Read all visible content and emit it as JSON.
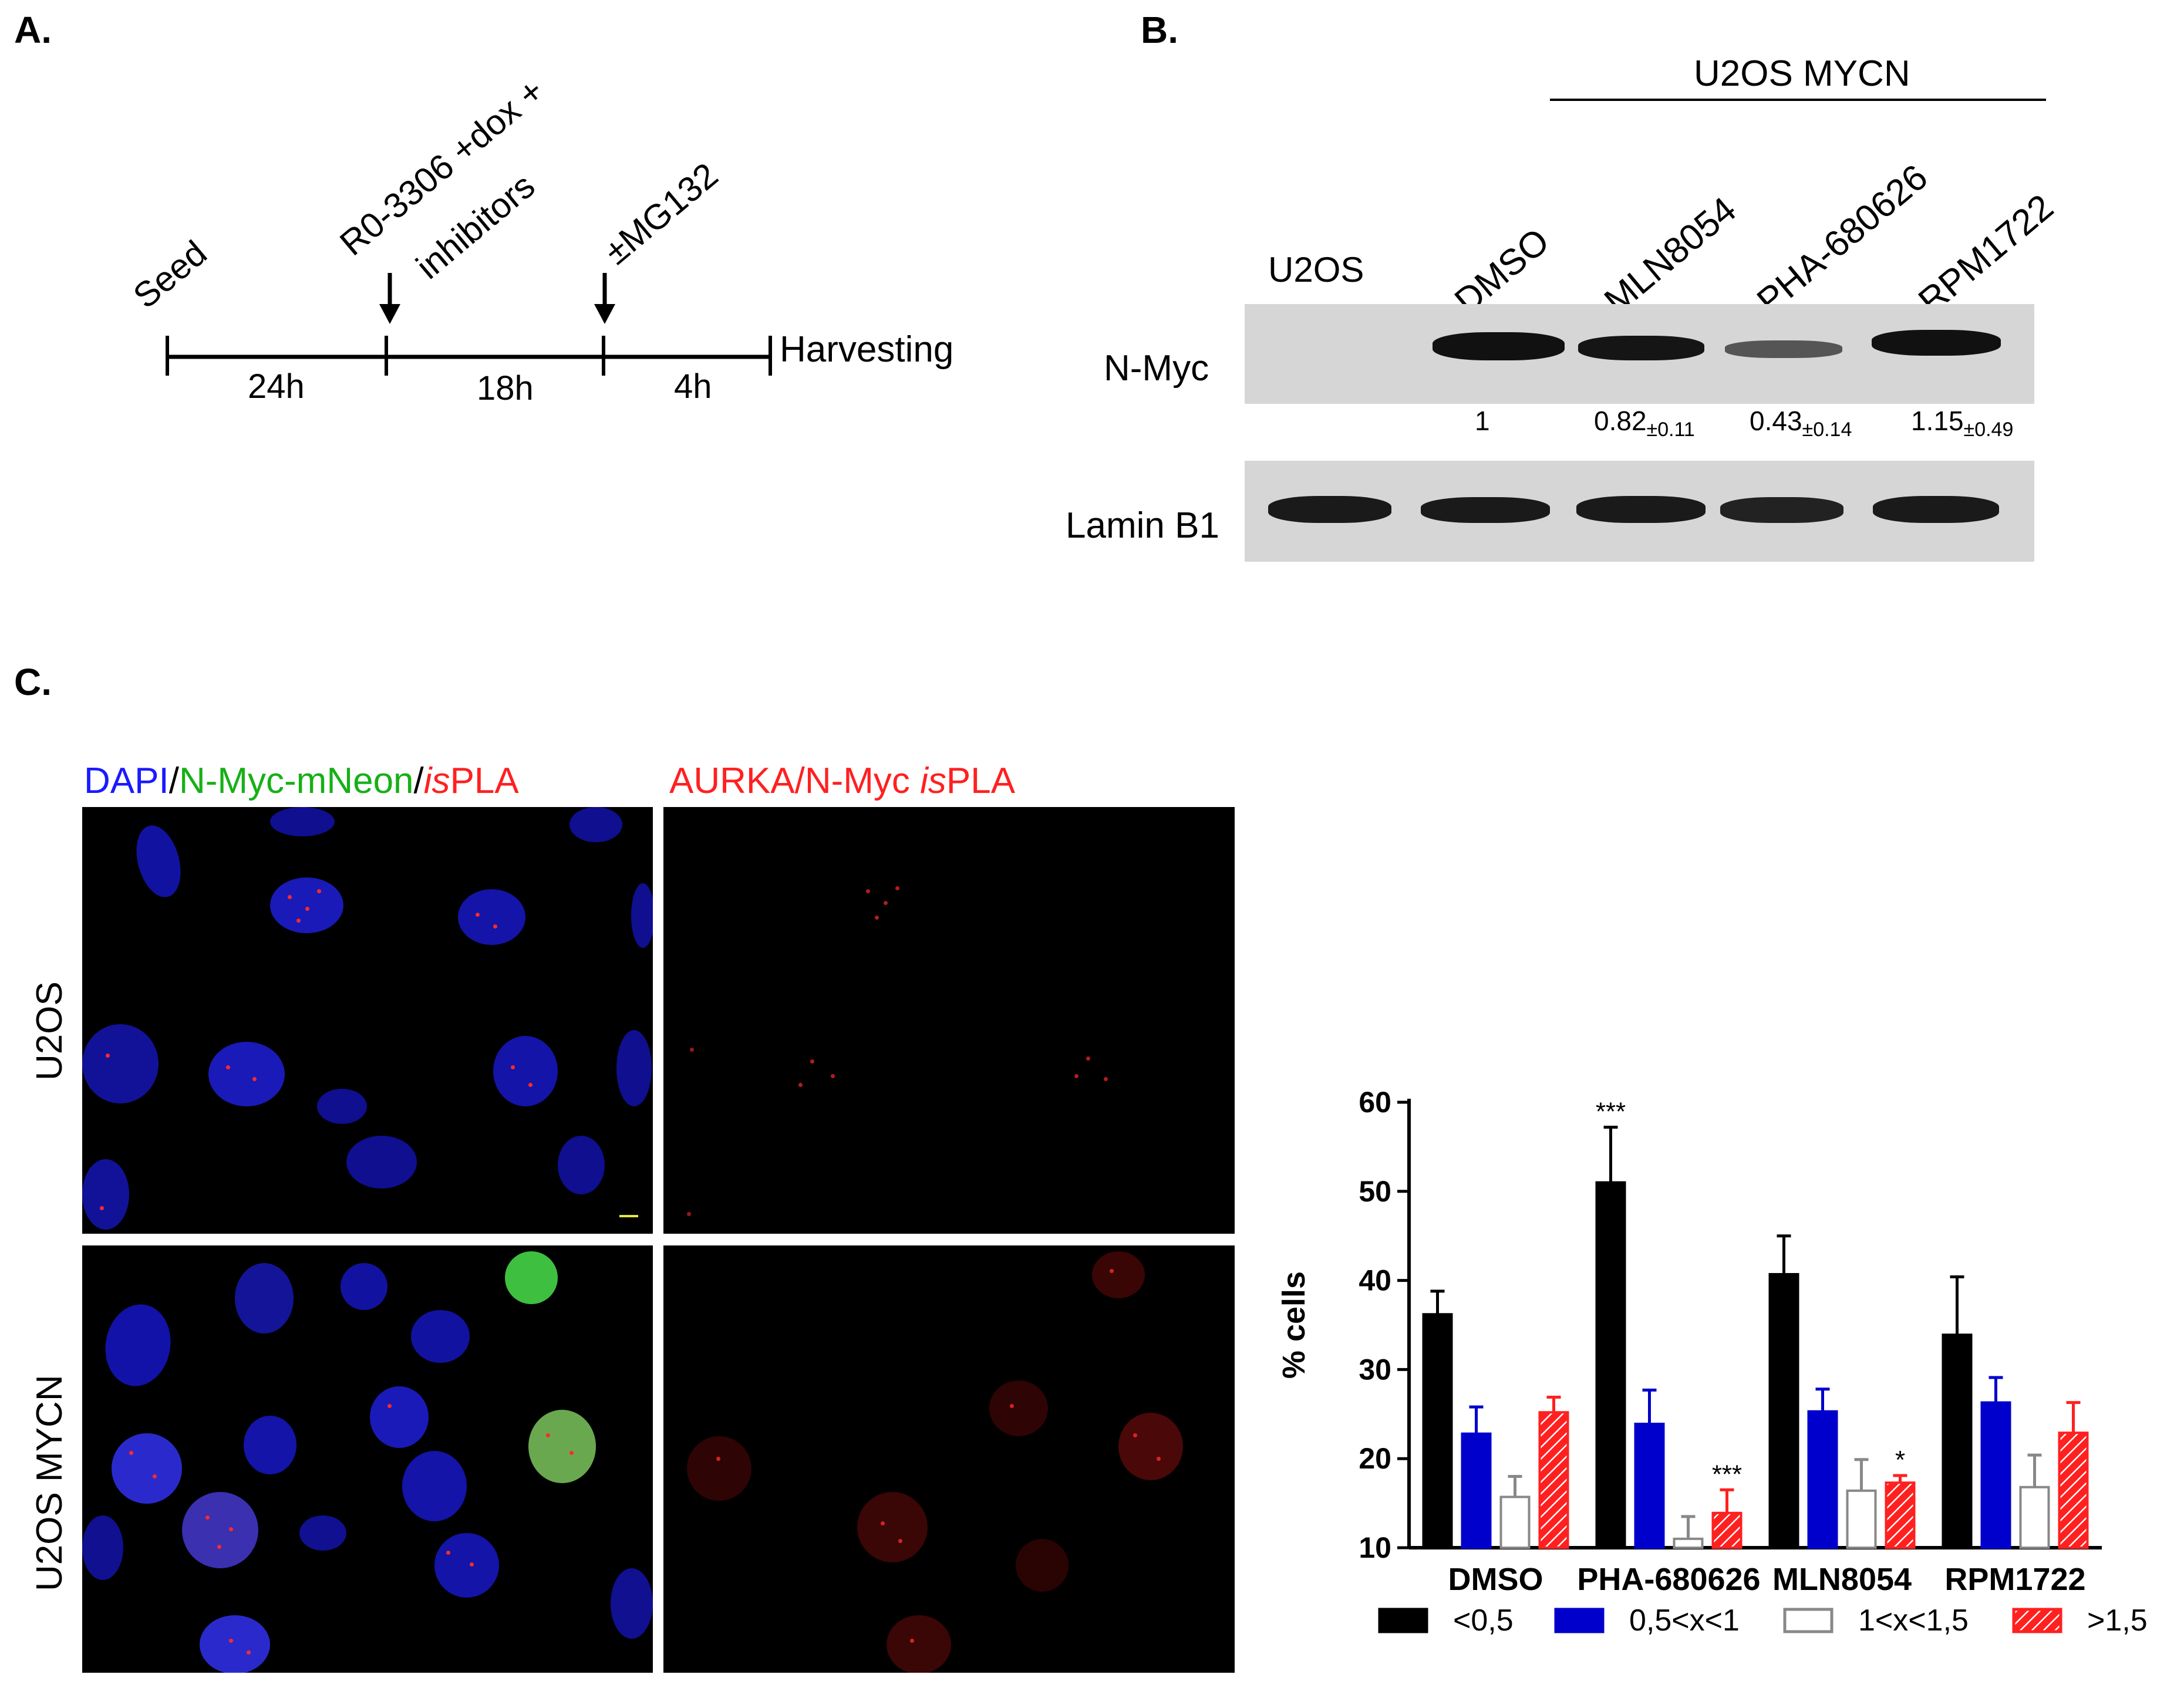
{
  "panel_a": {
    "letter": "A.",
    "events": [
      "Seed",
      "R0-3306 +dox +\ninhibitors",
      "±MG132"
    ],
    "event_line1": "R0-3306 +dox +",
    "event_line2": "inhibitors",
    "end_label": "Harvesting",
    "durations": [
      "24h",
      "18h",
      "4h"
    ]
  },
  "panel_b": {
    "letter": "B.",
    "group_label": "U2OS MYCN",
    "lanes": [
      "U2OS",
      "DMSO",
      "MLN8054",
      "PHA-680626",
      "RPM1722"
    ],
    "blots": [
      {
        "name": "N-Myc",
        "band_intensity": [
          0.0,
          0.9,
          0.85,
          0.45,
          0.95
        ]
      },
      {
        "name": "Lamin B1",
        "band_intensity": [
          0.9,
          0.9,
          0.9,
          0.85,
          0.9
        ]
      }
    ],
    "quantification": [
      {
        "lane": "DMSO",
        "value": "1",
        "error": ""
      },
      {
        "lane": "MLN8054",
        "value": "0.82",
        "error": "±0.11"
      },
      {
        "lane": "PHA-680626",
        "value": "0.43",
        "error": "±0.14"
      },
      {
        "lane": "RPM1722",
        "value": "1.15",
        "error": "±0.49"
      }
    ]
  },
  "panel_c": {
    "letter": "C.",
    "header_left": {
      "parts": [
        "DAPI",
        "/",
        "N-Myc-mNeon",
        "/",
        "is",
        "PLA"
      ]
    },
    "header_right": {
      "parts": [
        "AURKA/N-Myc ",
        "is",
        "PLA"
      ]
    },
    "row_labels": [
      "U2OS",
      "U2OS MYCN"
    ],
    "colors": {
      "dapi": "#1a1aff",
      "mneon": "#16b016",
      "pla": "#ff2020"
    }
  },
  "chart_data": {
    "type": "bar",
    "title": "",
    "xlabel": "",
    "ylabel": "% cells",
    "ylim": [
      10,
      60
    ],
    "yticks": [
      10,
      20,
      30,
      40,
      50,
      60
    ],
    "categories": [
      "DMSO",
      "PHA-680626",
      "MLN8054",
      "RPM1722"
    ],
    "series": [
      {
        "name": "<0,5",
        "color": "#000000",
        "style": "solid",
        "values": [
          36.2,
          51.0,
          40.7,
          33.9
        ],
        "errors": [
          2.6,
          6.2,
          4.3,
          6.5
        ],
        "annotations": [
          "",
          "***",
          "",
          ""
        ]
      },
      {
        "name": "0,5<x<1",
        "color": "#0000cc",
        "style": "solid",
        "values": [
          22.8,
          23.9,
          25.3,
          26.3
        ],
        "errors": [
          3.0,
          3.8,
          2.5,
          2.8
        ],
        "annotations": [
          "",
          "",
          "",
          ""
        ]
      },
      {
        "name": "1<x<1,5",
        "color": "#ffffff",
        "style": "outline",
        "values": [
          15.7,
          11.0,
          16.4,
          16.8
        ],
        "errors": [
          2.3,
          2.5,
          3.5,
          3.6
        ],
        "annotations": [
          "",
          "",
          "",
          ""
        ]
      },
      {
        "name": ">1,5",
        "color": "#ff2020",
        "style": "hatched",
        "values": [
          25.2,
          13.9,
          17.3,
          22.9
        ],
        "errors": [
          1.7,
          2.6,
          0.8,
          3.4
        ],
        "annotations": [
          "",
          "***",
          "*",
          ""
        ]
      }
    ],
    "legend_position": "bottom",
    "grid": false
  }
}
